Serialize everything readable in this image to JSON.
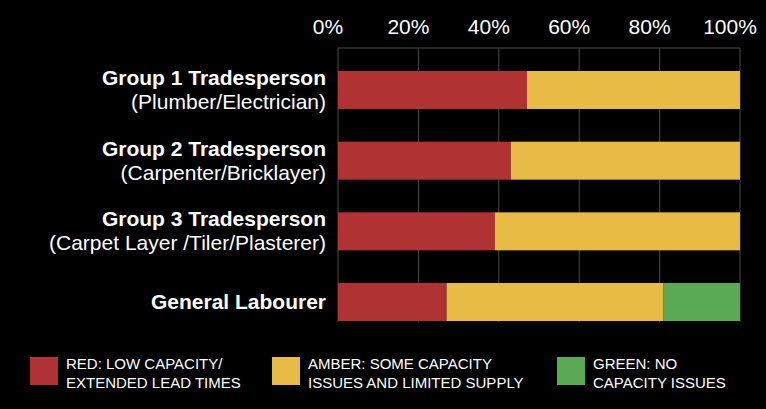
{
  "chart_data": {
    "type": "bar",
    "orientation": "horizontal",
    "stacked": true,
    "grid": true,
    "legend": "bottom",
    "categories": [
      "Group 1 Tradesperson\n(Plumber/Electrician)",
      "Group 2 Tradesperson\n(Carpenter/Bricklayer)",
      "Group 3 Tradesperson\n(Carpet Layer /Tiler/Plasterer)",
      "General Labourer"
    ],
    "series": [
      {
        "name": "RED: LOW CAPACITY/\nEXTENDED LEAD TIMES",
        "color": "#b03232",
        "values": [
          47,
          43,
          39,
          27
        ]
      },
      {
        "name": "AMBER: SOME CAPACITY\nISSUES AND LIMITED SUPPLY",
        "color": "#e8bb45",
        "values": [
          53,
          57,
          61,
          54
        ]
      },
      {
        "name": "GREEN: NO\nCAPACITY ISSUES",
        "color": "#5aa954",
        "values": [
          0,
          0,
          0,
          19
        ]
      }
    ],
    "xlim": [
      0,
      100
    ],
    "xticks": [
      {
        "value": 0,
        "label": "0%"
      },
      {
        "value": 20,
        "label": "20%"
      },
      {
        "value": 40,
        "label": "40%"
      },
      {
        "value": 60,
        "label": "60%"
      },
      {
        "value": 80,
        "label": "80%"
      },
      {
        "value": 100,
        "label": "100%"
      }
    ]
  }
}
